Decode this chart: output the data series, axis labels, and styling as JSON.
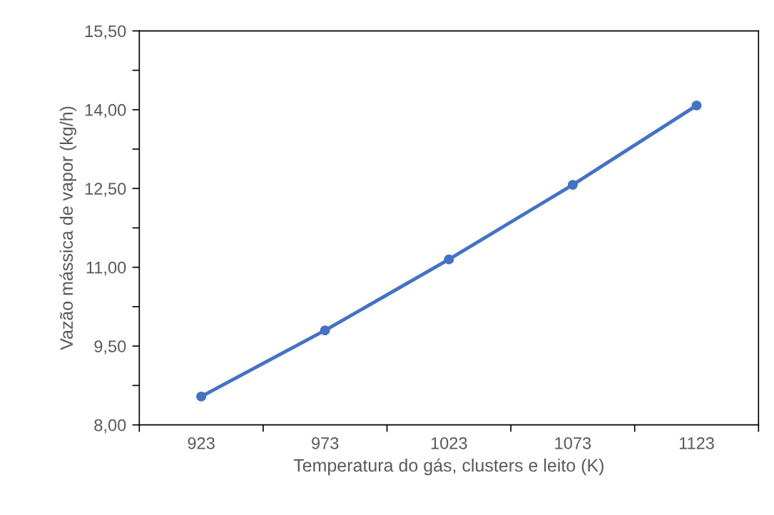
{
  "chart_data": {
    "type": "line",
    "xlabel": "Temperatura do gás, clusters e leito (K)",
    "ylabel": "Vazão mássica de vapor (kg/h)",
    "categories": [
      "923",
      "973",
      "1023",
      "1073",
      "1123"
    ],
    "series": [
      {
        "color": "#4472c4",
        "values": [
          8.54,
          9.8,
          11.15,
          12.57,
          14.08
        ]
      }
    ],
    "ylim": [
      8.0,
      15.5
    ],
    "yticks": [
      {
        "value": 8.0,
        "label": "8,00"
      },
      {
        "value": 8.75,
        "label": null
      },
      {
        "value": 9.5,
        "label": "9,50"
      },
      {
        "value": 10.25,
        "label": null
      },
      {
        "value": 11.0,
        "label": "11,00"
      },
      {
        "value": 11.75,
        "label": null
      },
      {
        "value": 12.5,
        "label": "12,50"
      },
      {
        "value": 13.25,
        "label": null
      },
      {
        "value": 14.0,
        "label": "14,00"
      },
      {
        "value": 14.75,
        "label": null
      },
      {
        "value": 15.5,
        "label": "15,50"
      }
    ],
    "grid": false,
    "legend": false,
    "marker": "circle",
    "line_style": "solid"
  }
}
